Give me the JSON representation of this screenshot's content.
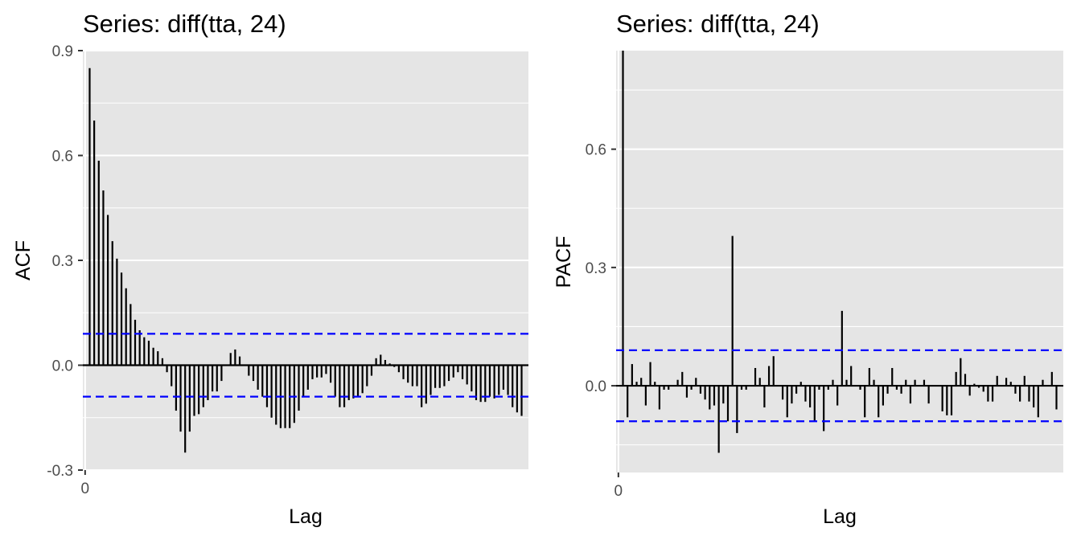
{
  "chart_data": [
    {
      "type": "bar",
      "title": "Series: diff(tta, 24)",
      "xlabel": "Lag",
      "ylabel": "ACF",
      "xticks": [
        0
      ],
      "yticks": [
        -0.3,
        0.0,
        0.3,
        0.6,
        0.9
      ],
      "ytick_labels": [
        "-0.3",
        "0.0",
        "0.3",
        "0.6",
        "0.9"
      ],
      "xlim": [
        -0.5,
        97.5
      ],
      "ylim": [
        -0.3,
        0.9
      ],
      "ci": 0.09,
      "lags": [
        1,
        2,
        3,
        4,
        5,
        6,
        7,
        8,
        9,
        10,
        11,
        12,
        13,
        14,
        15,
        16,
        17,
        18,
        19,
        20,
        21,
        22,
        23,
        24,
        25,
        26,
        27,
        28,
        29,
        30,
        31,
        32,
        33,
        34,
        35,
        36,
        37,
        38,
        39,
        40,
        41,
        42,
        43,
        44,
        45,
        46,
        47,
        48,
        49,
        50,
        51,
        52,
        53,
        54,
        55,
        56,
        57,
        58,
        59,
        60,
        61,
        62,
        63,
        64,
        65,
        66,
        67,
        68,
        69,
        70,
        71,
        72,
        73,
        74,
        75,
        76,
        77,
        78,
        79,
        80,
        81,
        82,
        83,
        84,
        85,
        86,
        87,
        88,
        89,
        90,
        91,
        92,
        93,
        94,
        95,
        96
      ],
      "values": [
        0.85,
        0.7,
        0.585,
        0.5,
        0.43,
        0.355,
        0.305,
        0.265,
        0.22,
        0.175,
        0.13,
        0.1,
        0.08,
        0.07,
        0.05,
        0.04,
        0.02,
        -0.02,
        -0.06,
        -0.13,
        -0.19,
        -0.25,
        -0.19,
        -0.145,
        -0.14,
        -0.12,
        -0.1,
        -0.075,
        -0.075,
        -0.045,
        0.0,
        0.035,
        0.045,
        0.025,
        0.0,
        -0.03,
        -0.045,
        -0.07,
        -0.09,
        -0.12,
        -0.15,
        -0.17,
        -0.18,
        -0.18,
        -0.18,
        -0.165,
        -0.13,
        -0.09,
        -0.07,
        -0.04,
        -0.035,
        -0.035,
        -0.025,
        -0.05,
        -0.09,
        -0.12,
        -0.12,
        -0.1,
        -0.095,
        -0.09,
        -0.08,
        -0.06,
        -0.03,
        0.02,
        0.03,
        0.015,
        0.005,
        -0.005,
        -0.02,
        -0.04,
        -0.05,
        -0.06,
        -0.06,
        -0.12,
        -0.11,
        -0.085,
        -0.065,
        -0.065,
        -0.06,
        -0.045,
        -0.035,
        -0.02,
        -0.04,
        -0.055,
        -0.075,
        -0.1,
        -0.105,
        -0.105,
        -0.09,
        -0.095,
        -0.085,
        -0.07,
        -0.085,
        -0.12,
        -0.135,
        -0.145
      ]
    },
    {
      "type": "bar",
      "title": "Series: diff(tta, 24)",
      "xlabel": "Lag",
      "ylabel": "PACF",
      "xticks": [
        0
      ],
      "yticks": [
        0.0,
        0.3,
        0.6
      ],
      "ytick_labels": [
        "0.0",
        "0.3",
        "0.6"
      ],
      "xlim": [
        -0.5,
        97.5
      ],
      "ylim": [
        -0.22,
        0.85
      ],
      "ci": 0.09,
      "lags": [
        1,
        2,
        3,
        4,
        5,
        6,
        7,
        8,
        9,
        10,
        11,
        12,
        13,
        14,
        15,
        16,
        17,
        18,
        19,
        20,
        21,
        22,
        23,
        24,
        25,
        26,
        27,
        28,
        29,
        30,
        31,
        32,
        33,
        34,
        35,
        36,
        37,
        38,
        39,
        40,
        41,
        42,
        43,
        44,
        45,
        46,
        47,
        48,
        49,
        50,
        51,
        52,
        53,
        54,
        55,
        56,
        57,
        58,
        59,
        60,
        61,
        62,
        63,
        64,
        65,
        66,
        67,
        68,
        69,
        70,
        71,
        72,
        73,
        74,
        75,
        76,
        77,
        78,
        79,
        80,
        81,
        82,
        83,
        84,
        85,
        86,
        87,
        88,
        89,
        90,
        91,
        92,
        93,
        94,
        95,
        96
      ],
      "values": [
        0.85,
        -0.08,
        0.055,
        0.01,
        0.02,
        -0.05,
        0.06,
        0.01,
        -0.06,
        -0.01,
        -0.01,
        0.0,
        0.015,
        0.035,
        -0.03,
        -0.01,
        0.02,
        -0.02,
        -0.035,
        -0.06,
        -0.05,
        -0.17,
        -0.045,
        -0.09,
        0.38,
        -0.12,
        -0.01,
        -0.01,
        0.0,
        0.045,
        0.02,
        -0.055,
        0.05,
        0.075,
        0.0,
        -0.035,
        -0.08,
        -0.045,
        -0.02,
        0.01,
        -0.04,
        -0.055,
        -0.09,
        -0.01,
        -0.115,
        -0.01,
        0.015,
        -0.05,
        0.19,
        0.015,
        0.05,
        0.0,
        -0.01,
        -0.08,
        0.045,
        0.015,
        -0.08,
        -0.05,
        -0.02,
        0.045,
        -0.01,
        -0.02,
        0.015,
        -0.045,
        0.015,
        0.0,
        0.015,
        -0.045,
        0.0,
        0.0,
        -0.065,
        -0.075,
        -0.075,
        0.035,
        0.07,
        0.03,
        -0.025,
        0.005,
        -0.005,
        -0.015,
        -0.04,
        -0.04,
        0.025,
        0.0,
        0.02,
        0.01,
        -0.02,
        -0.04,
        0.025,
        -0.04,
        -0.055,
        -0.08,
        0.015,
        0.0,
        0.035,
        -0.06
      ]
    }
  ]
}
